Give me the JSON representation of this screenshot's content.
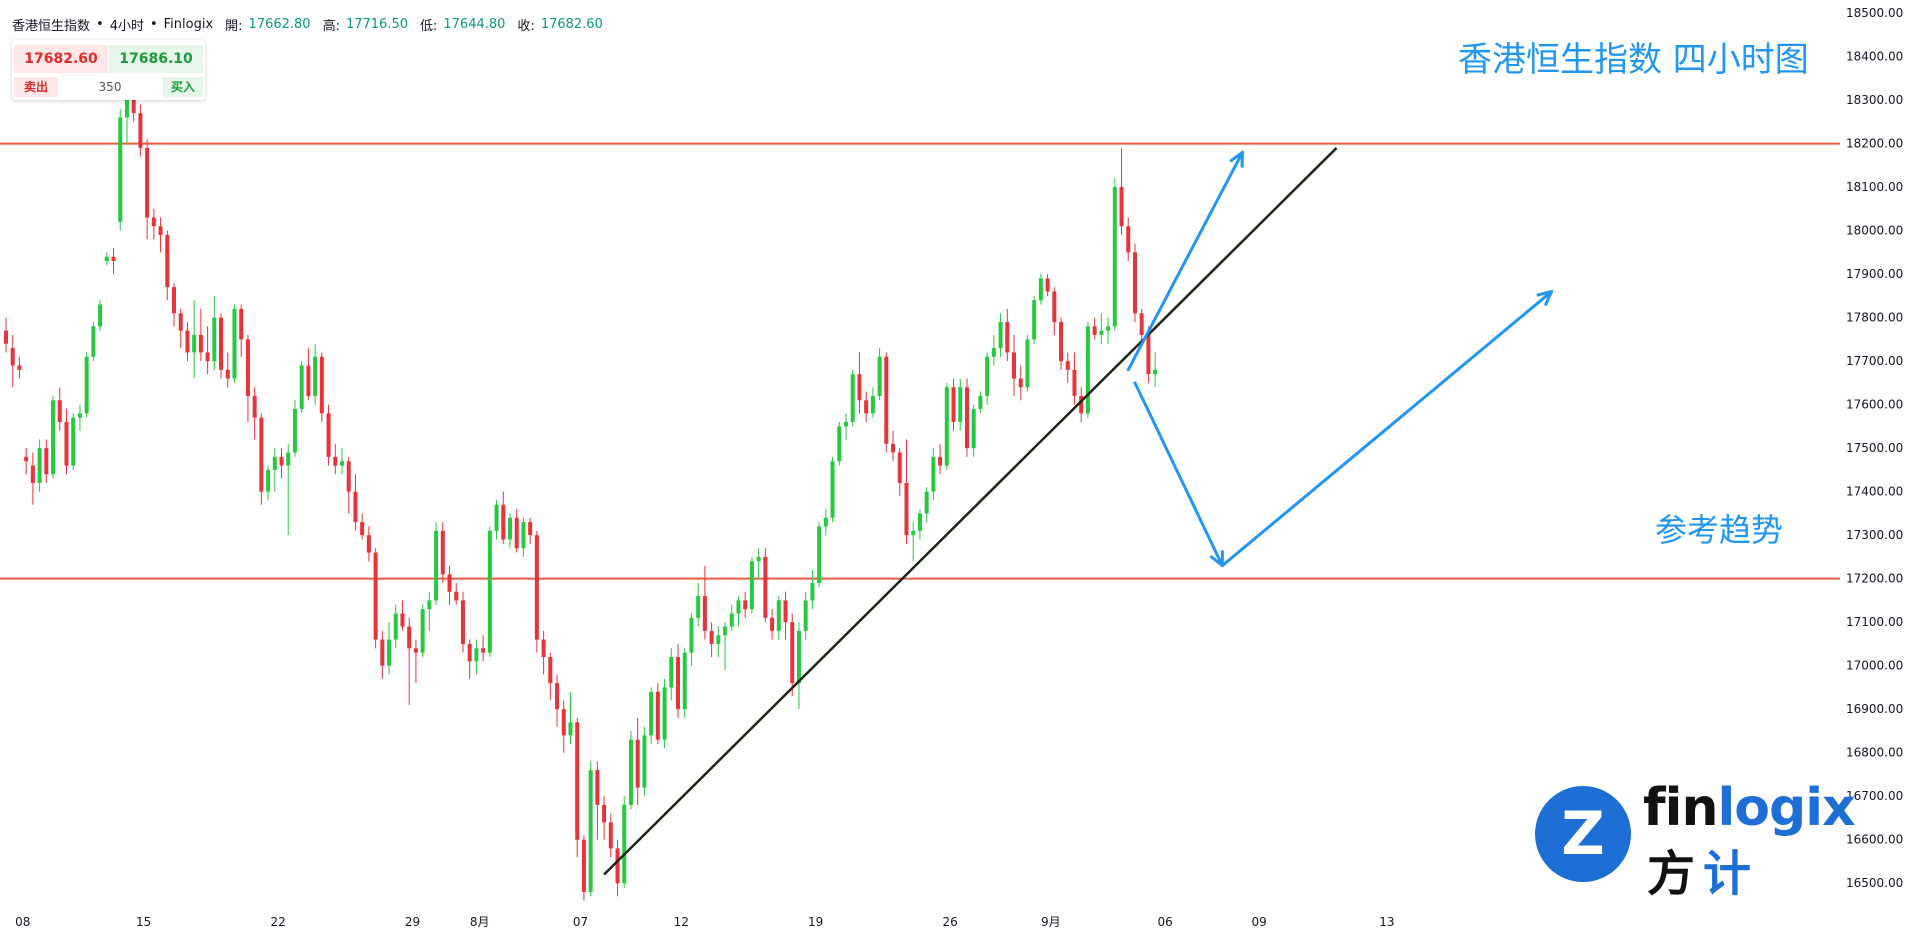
{
  "header": {
    "symbol": "香港恒生指数",
    "sep1": "•",
    "timeframe": "4小时",
    "sep2": "•",
    "source": "Finlogix",
    "open_label": "開:",
    "open_value": "17662.80",
    "high_label": "高:",
    "high_value": "17716.50",
    "low_label": "低:",
    "low_value": "17644.80",
    "close_label": "收:",
    "close_value": "17682.60"
  },
  "trade": {
    "sell_price": "17682.60",
    "buy_price": "17686.10",
    "sell_label": "卖出",
    "buy_label": "买入",
    "quantity": "350"
  },
  "annotations": {
    "title": "香港恒生指数 四小时图",
    "reference_trend": "参考趋势"
  },
  "logo": {
    "mark": "Z",
    "text_a": "fin",
    "text_b": "logix",
    "cn_a": "方",
    "cn_b": "计"
  },
  "colors": {
    "up": "#22ab94",
    "up_fill": "#26c940",
    "down": "#e8333a",
    "horizontal_line": "#ef5a3c",
    "trendline": "#1c2616",
    "arrow": "#2196f3",
    "axis_text": "#131722"
  },
  "chart_data": {
    "type": "candlestick",
    "title": "香港恒生指数 四小时图",
    "ylim": [
      16450,
      18530
    ],
    "y_ticks": [
      "18500.00",
      "18400.00",
      "18300.00",
      "18200.00",
      "18100.00",
      "18000.00",
      "17900.00",
      "17800.00",
      "17700.00",
      "17600.00",
      "17500.00",
      "17400.00",
      "17300.00",
      "17200.00",
      "17100.00",
      "17000.00",
      "16900.00",
      "16800.00",
      "16700.00",
      "16600.00",
      "16500.00"
    ],
    "y_tick_values": [
      18500,
      18400,
      18300,
      18200,
      18100,
      18000,
      17900,
      17800,
      17700,
      17600,
      17500,
      17400,
      17300,
      17200,
      17100,
      17000,
      16900,
      16800,
      16700,
      16600,
      16500
    ],
    "x_ticks": [
      "08",
      "15",
      "22",
      "29",
      "8月",
      "07",
      "12",
      "19",
      "26",
      "9月",
      "06",
      "09",
      "13"
    ],
    "x_tick_bars": [
      1,
      19,
      39,
      59,
      69,
      84,
      99,
      119,
      139,
      154,
      171,
      185,
      204
    ],
    "candles": [
      [
        17770,
        17800,
        17720,
        17740
      ],
      [
        17730,
        17760,
        17640,
        17690
      ],
      [
        17690,
        17710,
        17660,
        17680
      ],
      [
        17480,
        17500,
        17440,
        17470
      ],
      [
        17460,
        17490,
        17370,
        17420
      ],
      [
        17420,
        17520,
        17400,
        17500
      ],
      [
        17500,
        17520,
        17420,
        17440
      ],
      [
        17440,
        17620,
        17430,
        17610
      ],
      [
        17610,
        17640,
        17540,
        17560
      ],
      [
        17560,
        17590,
        17440,
        17460
      ],
      [
        17460,
        17580,
        17450,
        17570
      ],
      [
        17570,
        17600,
        17540,
        17580
      ],
      [
        17580,
        17720,
        17570,
        17710
      ],
      [
        17710,
        17790,
        17700,
        17780
      ],
      [
        17780,
        17840,
        17770,
        17830
      ],
      [
        17930,
        17950,
        17920,
        17940
      ],
      [
        17940,
        17960,
        17900,
        17930
      ],
      [
        18020,
        18280,
        18000,
        18260
      ],
      [
        18260,
        18380,
        18200,
        18340
      ],
      [
        18340,
        18360,
        18250,
        18270
      ],
      [
        18270,
        18290,
        18170,
        18190
      ],
      [
        18190,
        18210,
        17980,
        18030
      ],
      [
        18030,
        18050,
        17980,
        18010
      ],
      [
        18010,
        18030,
        17950,
        17990
      ],
      [
        17990,
        18000,
        17840,
        17870
      ],
      [
        17870,
        17880,
        17780,
        17810
      ],
      [
        17810,
        17820,
        17730,
        17770
      ],
      [
        17770,
        17790,
        17700,
        17720
      ],
      [
        17720,
        17840,
        17660,
        17760
      ],
      [
        17760,
        17820,
        17700,
        17720
      ],
      [
        17720,
        17780,
        17670,
        17700
      ],
      [
        17700,
        17850,
        17680,
        17800
      ],
      [
        17800,
        17810,
        17660,
        17680
      ],
      [
        17680,
        17720,
        17640,
        17660
      ],
      [
        17660,
        17830,
        17650,
        17820
      ],
      [
        17820,
        17830,
        17710,
        17750
      ],
      [
        17750,
        17760,
        17560,
        17620
      ],
      [
        17620,
        17640,
        17520,
        17570
      ],
      [
        17570,
        17580,
        17370,
        17400
      ],
      [
        17400,
        17460,
        17380,
        17450
      ],
      [
        17450,
        17500,
        17400,
        17480
      ],
      [
        17480,
        17500,
        17430,
        17460
      ],
      [
        17460,
        17510,
        17300,
        17490
      ],
      [
        17490,
        17610,
        17480,
        17590
      ],
      [
        17590,
        17700,
        17580,
        17690
      ],
      [
        17690,
        17730,
        17610,
        17620
      ],
      [
        17620,
        17740,
        17600,
        17710
      ],
      [
        17710,
        17720,
        17560,
        17580
      ],
      [
        17580,
        17600,
        17460,
        17480
      ],
      [
        17480,
        17510,
        17440,
        17460
      ],
      [
        17460,
        17500,
        17440,
        17470
      ],
      [
        17470,
        17480,
        17350,
        17400
      ],
      [
        17400,
        17440,
        17310,
        17330
      ],
      [
        17330,
        17350,
        17290,
        17300
      ],
      [
        17300,
        17320,
        17240,
        17260
      ],
      [
        17260,
        17270,
        17040,
        17060
      ],
      [
        17060,
        17080,
        16970,
        17000
      ],
      [
        17000,
        17100,
        16980,
        17060
      ],
      [
        17060,
        17140,
        17040,
        17120
      ],
      [
        17120,
        17150,
        17080,
        17090
      ],
      [
        17090,
        17110,
        16910,
        17040
      ],
      [
        17040,
        17060,
        16960,
        17030
      ],
      [
        17030,
        17140,
        17020,
        17130
      ],
      [
        17130,
        17170,
        17080,
        17150
      ],
      [
        17150,
        17330,
        17140,
        17310
      ],
      [
        17310,
        17330,
        17190,
        17210
      ],
      [
        17210,
        17230,
        17140,
        17170
      ],
      [
        17170,
        17190,
        17140,
        17150
      ],
      [
        17150,
        17170,
        17030,
        17050
      ],
      [
        17050,
        17060,
        16970,
        17010
      ],
      [
        17010,
        17060,
        16980,
        17040
      ],
      [
        17040,
        17070,
        17010,
        17030
      ],
      [
        17030,
        17320,
        17020,
        17310
      ],
      [
        17310,
        17380,
        17290,
        17370
      ],
      [
        17370,
        17400,
        17280,
        17290
      ],
      [
        17290,
        17350,
        17270,
        17340
      ],
      [
        17340,
        17360,
        17260,
        17270
      ],
      [
        17270,
        17340,
        17250,
        17330
      ],
      [
        17330,
        17340,
        17280,
        17300
      ],
      [
        17300,
        17310,
        17030,
        17060
      ],
      [
        17060,
        17080,
        16980,
        17020
      ],
      [
        17020,
        17030,
        16920,
        16960
      ],
      [
        16960,
        16980,
        16860,
        16900
      ],
      [
        16900,
        16920,
        16800,
        16840
      ],
      [
        16840,
        16940,
        16820,
        16870
      ],
      [
        16870,
        16880,
        16560,
        16600
      ],
      [
        16600,
        16610,
        16460,
        16480
      ],
      [
        16480,
        16780,
        16470,
        16760
      ],
      [
        16760,
        16780,
        16600,
        16680
      ],
      [
        16680,
        16700,
        16600,
        16640
      ],
      [
        16640,
        16660,
        16560,
        16580
      ],
      [
        16580,
        16600,
        16470,
        16500
      ],
      [
        16500,
        16700,
        16490,
        16680
      ],
      [
        16680,
        16850,
        16670,
        16830
      ],
      [
        16830,
        16880,
        16680,
        16720
      ],
      [
        16720,
        16860,
        16700,
        16840
      ],
      [
        16840,
        16950,
        16820,
        16940
      ],
      [
        16940,
        16960,
        16820,
        16830
      ],
      [
        16830,
        16970,
        16810,
        16950
      ],
      [
        16950,
        17040,
        16920,
        17020
      ],
      [
        17020,
        17050,
        16880,
        16900
      ],
      [
        16900,
        17040,
        16880,
        17030
      ],
      [
        17030,
        17120,
        17000,
        17110
      ],
      [
        17110,
        17190,
        17090,
        17160
      ],
      [
        17160,
        17230,
        17060,
        17080
      ],
      [
        17080,
        17100,
        17020,
        17050
      ],
      [
        17050,
        17090,
        17020,
        17070
      ],
      [
        17070,
        17100,
        16990,
        17090
      ],
      [
        17090,
        17140,
        17080,
        17120
      ],
      [
        17120,
        17160,
        17090,
        17150
      ],
      [
        17150,
        17170,
        17110,
        17130
      ],
      [
        17130,
        17250,
        17120,
        17240
      ],
      [
        17240,
        17270,
        17200,
        17250
      ],
      [
        17250,
        17270,
        17100,
        17110
      ],
      [
        17110,
        17130,
        17060,
        17080
      ],
      [
        17080,
        17160,
        17060,
        17150
      ],
      [
        17150,
        17170,
        17060,
        17100
      ],
      [
        17100,
        17120,
        16930,
        16960
      ],
      [
        16960,
        17100,
        16900,
        17080
      ],
      [
        17080,
        17170,
        17060,
        17150
      ],
      [
        17150,
        17220,
        17130,
        17190
      ],
      [
        17190,
        17330,
        17180,
        17320
      ],
      [
        17320,
        17360,
        17300,
        17340
      ],
      [
        17340,
        17480,
        17330,
        17470
      ],
      [
        17470,
        17560,
        17460,
        17550
      ],
      [
        17550,
        17580,
        17520,
        17560
      ],
      [
        17560,
        17680,
        17550,
        17670
      ],
      [
        17670,
        17720,
        17580,
        17610
      ],
      [
        17610,
        17630,
        17560,
        17580
      ],
      [
        17580,
        17640,
        17570,
        17620
      ],
      [
        17620,
        17730,
        17610,
        17710
      ],
      [
        17710,
        17720,
        17490,
        17510
      ],
      [
        17510,
        17540,
        17470,
        17490
      ],
      [
        17490,
        17500,
        17390,
        17420
      ],
      [
        17420,
        17520,
        17280,
        17300
      ],
      [
        17300,
        17330,
        17240,
        17310
      ],
      [
        17310,
        17360,
        17290,
        17350
      ],
      [
        17350,
        17410,
        17330,
        17400
      ],
      [
        17400,
        17500,
        17380,
        17480
      ],
      [
        17480,
        17510,
        17440,
        17460
      ],
      [
        17460,
        17650,
        17450,
        17640
      ],
      [
        17640,
        17660,
        17540,
        17560
      ],
      [
        17560,
        17660,
        17540,
        17640
      ],
      [
        17640,
        17660,
        17480,
        17500
      ],
      [
        17500,
        17600,
        17480,
        17590
      ],
      [
        17590,
        17630,
        17580,
        17620
      ],
      [
        17620,
        17720,
        17600,
        17710
      ],
      [
        17710,
        17760,
        17690,
        17730
      ],
      [
        17730,
        17810,
        17710,
        17790
      ],
      [
        17790,
        17820,
        17700,
        17720
      ],
      [
        17720,
        17760,
        17620,
        17660
      ],
      [
        17660,
        17690,
        17610,
        17640
      ],
      [
        17640,
        17760,
        17630,
        17750
      ],
      [
        17750,
        17850,
        17740,
        17840
      ],
      [
        17840,
        17900,
        17830,
        17890
      ],
      [
        17890,
        17900,
        17850,
        17860
      ],
      [
        17860,
        17870,
        17760,
        17790
      ],
      [
        17790,
        17800,
        17680,
        17700
      ],
      [
        17700,
        17720,
        17650,
        17680
      ],
      [
        17680,
        17720,
        17600,
        17620
      ],
      [
        17620,
        17640,
        17560,
        17580
      ],
      [
        17580,
        17790,
        17570,
        17780
      ],
      [
        17780,
        17800,
        17750,
        17760
      ],
      [
        17760,
        17810,
        17740,
        17770
      ],
      [
        17770,
        17800,
        17740,
        17780
      ],
      [
        17780,
        18120,
        17770,
        18100
      ],
      [
        18100,
        18190,
        17990,
        18010
      ],
      [
        18010,
        18030,
        17930,
        17950
      ],
      [
        17950,
        17970,
        17790,
        17810
      ],
      [
        17810,
        17820,
        17740,
        17760
      ],
      [
        17760,
        17780,
        17650,
        17670
      ],
      [
        17670,
        17720,
        17640,
        17680
      ]
    ],
    "horizontal_levels": [
      18200,
      17200
    ],
    "trendline": {
      "from": {
        "bar": 89,
        "price": 16520
      },
      "to": {
        "bar": 198,
        "price": 18190
      }
    },
    "projection": [
      {
        "from": {
          "bar": 167,
          "price": 17680
        },
        "to": {
          "bar": 184,
          "price": 18180
        }
      },
      {
        "from": {
          "bar": 168,
          "price": 17650
        },
        "to": {
          "bar": 181,
          "price": 17230
        }
      },
      {
        "from": {
          "bar": 181,
          "price": 17230
        },
        "to": {
          "bar": 230,
          "price": 17860
        }
      }
    ]
  }
}
